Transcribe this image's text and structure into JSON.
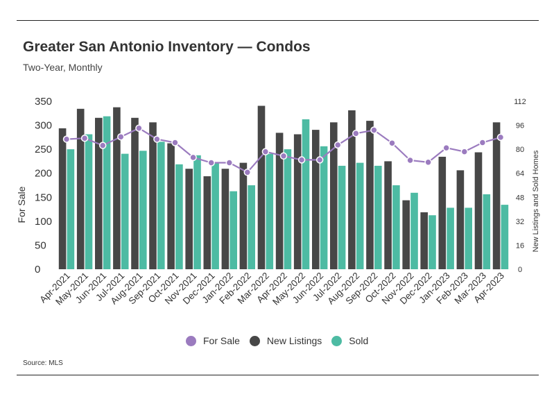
{
  "header": {
    "title": "Greater San Antonio Inventory — Condos",
    "subtitle": "Two-Year, Monthly"
  },
  "footer": {
    "source": "Source: MLS"
  },
  "colors": {
    "for_sale": "#9b7bbf",
    "new_listings": "#474747",
    "sold": "#4dbba3"
  },
  "chart_data": {
    "type": "bar",
    "title": "Greater San Antonio Inventory — Condos",
    "subtitle": "Two-Year, Monthly",
    "ylabel": "For Sale",
    "y2label": "New Listings and Sold Homes",
    "ylim": [
      0,
      350
    ],
    "y2lim": [
      0,
      112
    ],
    "yticks": [
      0,
      50,
      100,
      150,
      200,
      250,
      300,
      350
    ],
    "y2ticks": [
      0,
      16,
      32,
      48,
      64,
      80,
      96,
      112
    ],
    "grid": false,
    "legend": "bottom",
    "categories": [
      "Apr-2021",
      "May-2021",
      "Jun-2021",
      "Jul-2021",
      "Aug-2021",
      "Sep-2021",
      "Oct-2021",
      "Nov-2021",
      "Dec-2021",
      "Jan-2022",
      "Feb-2022",
      "Mar-2022",
      "Apr-2022",
      "May-2022",
      "Jun-2022",
      "Jul-2022",
      "Aug-2022",
      "Sep-2022",
      "Oct-2022",
      "Nov-2022",
      "Dec-2022",
      "Jan-2023",
      "Feb-2023",
      "Mar-2023",
      "Apr-2023"
    ],
    "series": [
      {
        "name": "For Sale",
        "type": "line",
        "axis": "left",
        "values": [
          271,
          273,
          258,
          276,
          294,
          271,
          264,
          233,
          222,
          222,
          202,
          245,
          236,
          228,
          228,
          259,
          283,
          290,
          263,
          227,
          223,
          253,
          245,
          264,
          275
        ]
      },
      {
        "name": "New Listings",
        "type": "bar",
        "axis": "right",
        "values": [
          94,
          107,
          101,
          108,
          101,
          98,
          84,
          67,
          62,
          67,
          71,
          109,
          91,
          90,
          93,
          98,
          106,
          99,
          72,
          46,
          38,
          75,
          66,
          78,
          98
        ]
      },
      {
        "name": "Sold",
        "type": "bar",
        "axis": "right",
        "values": [
          80,
          90,
          102,
          77,
          79,
          85,
          70,
          76,
          71,
          52,
          56,
          77,
          80,
          100,
          82,
          69,
          71,
          69,
          56,
          51,
          36,
          41,
          41,
          50,
          43
        ]
      }
    ]
  }
}
